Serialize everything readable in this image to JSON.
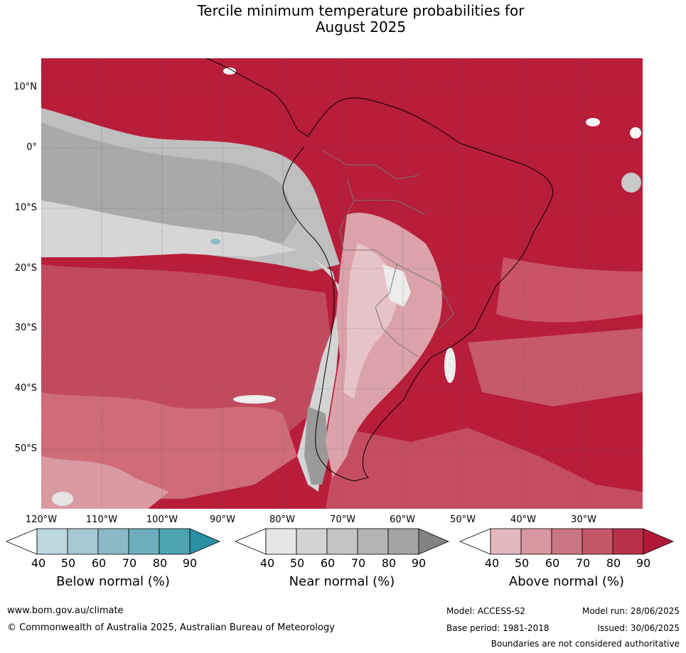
{
  "title_line1": "Tercile minimum temperature probabilities for",
  "title_line2": "August 2025",
  "lat_labels": [
    "10°N",
    "0°",
    "10°S",
    "20°S",
    "30°S",
    "40°S",
    "50°S"
  ],
  "lon_labels": [
    "120°W",
    "110°W",
    "100°W",
    "90°W",
    "80°W",
    "70°W",
    "60°W",
    "50°W",
    "40°W",
    "30°W"
  ],
  "colorbars": [
    {
      "label": "Below normal (%)",
      "ticks": [
        "40",
        "50",
        "60",
        "70",
        "80",
        "90"
      ],
      "colors": [
        "#ffffff",
        "#bcd7de",
        "#a5c9d2",
        "#8bbac6",
        "#6eaebc",
        "#4ea3b2",
        "#2a8fa3"
      ]
    },
    {
      "label": "Near normal (%)",
      "ticks": [
        "40",
        "50",
        "60",
        "70",
        "80",
        "90"
      ],
      "colors": [
        "#ffffff",
        "#e6e6e6",
        "#d4d4d4",
        "#c4c4c4",
        "#b4b4b4",
        "#a3a3a3",
        "#828282"
      ]
    },
    {
      "label": "Above normal (%)",
      "ticks": [
        "40",
        "50",
        "60",
        "70",
        "80",
        "90"
      ],
      "colors": [
        "#ffffff",
        "#e2b7bd",
        "#d7979f",
        "#ca7680",
        "#c35767",
        "#b8304a",
        "#b01a36"
      ]
    }
  ],
  "footer": {
    "website": "www.bom.gov.au/climate",
    "copyright": "© Commonwealth of Australia 2025, Australian Bureau of Meteorology",
    "model": "Model: ACCESS-S2",
    "model_run": "Model run: 28/06/2025",
    "base_period": "Base period: 1981-2018",
    "issued": "Issued: 30/06/2025",
    "disclaimer": "Boundaries are not considered authoritative"
  }
}
